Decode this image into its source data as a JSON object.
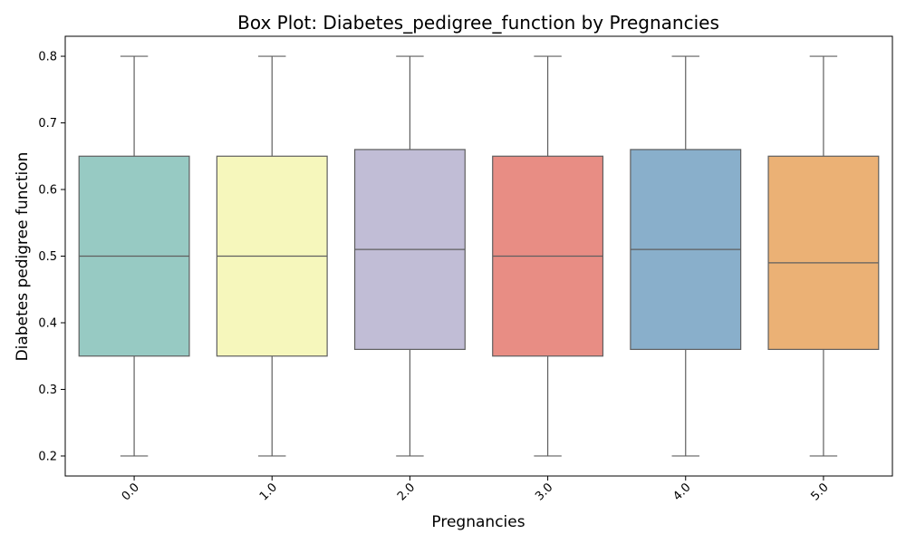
{
  "chart_data": {
    "type": "box",
    "title": "Box Plot: Diabetes_pedigree_function by Pregnancies",
    "xlabel": "Pregnancies",
    "ylabel": "Diabetes pedigree function",
    "categories": [
      "0.0",
      "1.0",
      "2.0",
      "3.0",
      "4.0",
      "5.0"
    ],
    "boxes": [
      {
        "category": "0.0",
        "min": 0.2,
        "q1": 0.35,
        "median": 0.5,
        "q3": 0.65,
        "max": 0.8,
        "color": "#97CAC3"
      },
      {
        "category": "1.0",
        "min": 0.2,
        "q1": 0.35,
        "median": 0.5,
        "q3": 0.65,
        "max": 0.8,
        "color": "#F6F7BC"
      },
      {
        "category": "2.0",
        "min": 0.2,
        "q1": 0.36,
        "median": 0.51,
        "q3": 0.66,
        "max": 0.8,
        "color": "#C1BDD6"
      },
      {
        "category": "3.0",
        "min": 0.2,
        "q1": 0.35,
        "median": 0.5,
        "q3": 0.65,
        "max": 0.8,
        "color": "#E88D84"
      },
      {
        "category": "4.0",
        "min": 0.2,
        "q1": 0.36,
        "median": 0.51,
        "q3": 0.66,
        "max": 0.8,
        "color": "#89AFCB"
      },
      {
        "category": "5.0",
        "min": 0.2,
        "q1": 0.36,
        "median": 0.49,
        "q3": 0.65,
        "max": 0.8,
        "color": "#EBB175"
      }
    ],
    "yticks": [
      0.2,
      0.3,
      0.4,
      0.5,
      0.6,
      0.7,
      0.8
    ],
    "ylim": [
      0.17,
      0.83
    ],
    "grid": false,
    "line_color": "#5f5f5f"
  }
}
